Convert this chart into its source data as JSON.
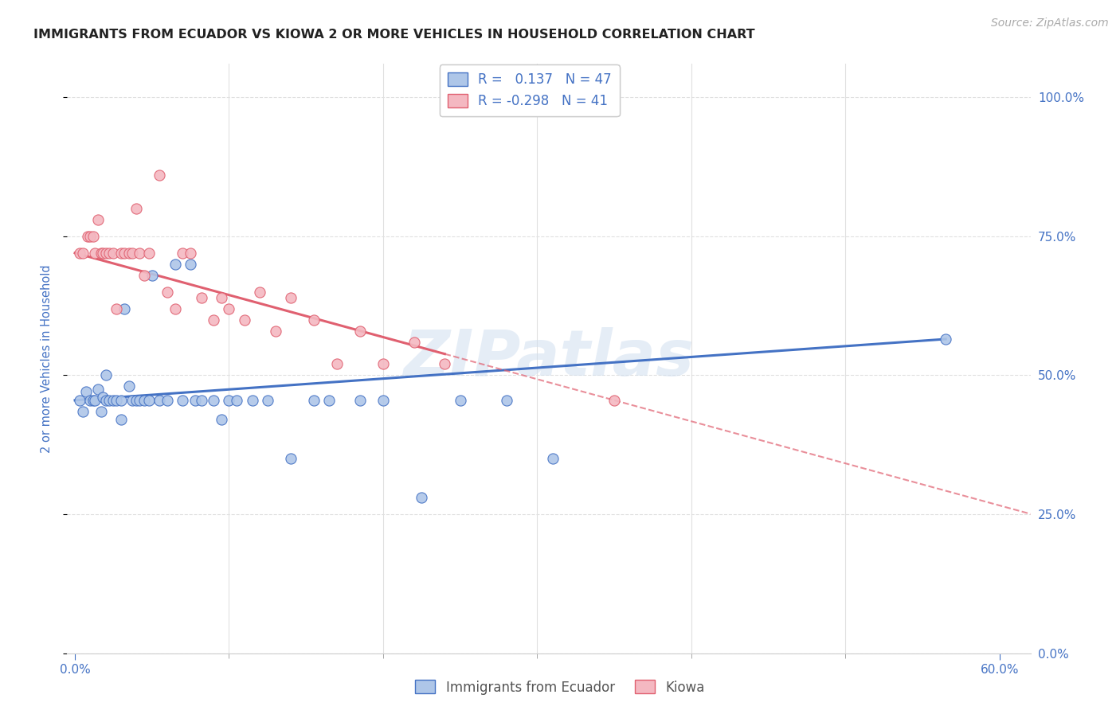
{
  "title": "IMMIGRANTS FROM ECUADOR VS KIOWA 2 OR MORE VEHICLES IN HOUSEHOLD CORRELATION CHART",
  "source": "Source: ZipAtlas.com",
  "xlabel_ticks_shown": [
    "0.0%",
    "60.0%"
  ],
  "xlabel_ticks_shown_vals": [
    0.0,
    0.6
  ],
  "xlabel_minor_vals": [
    0.1,
    0.2,
    0.3,
    0.4,
    0.5
  ],
  "ylabel_ticks": [
    "0.0%",
    "25.0%",
    "50.0%",
    "75.0%",
    "100.0%"
  ],
  "ylabel_vals": [
    0.0,
    0.25,
    0.5,
    0.75,
    1.0
  ],
  "xlim": [
    -0.005,
    0.62
  ],
  "ylim": [
    0.0,
    1.06
  ],
  "watermark": "ZIPatlas",
  "ecuador_scatter_x": [
    0.003,
    0.005,
    0.007,
    0.01,
    0.012,
    0.013,
    0.015,
    0.017,
    0.018,
    0.02,
    0.02,
    0.022,
    0.025,
    0.027,
    0.03,
    0.03,
    0.032,
    0.035,
    0.037,
    0.04,
    0.042,
    0.045,
    0.048,
    0.05,
    0.055,
    0.06,
    0.065,
    0.07,
    0.075,
    0.078,
    0.082,
    0.09,
    0.095,
    0.1,
    0.105,
    0.115,
    0.125,
    0.14,
    0.155,
    0.165,
    0.185,
    0.2,
    0.225,
    0.25,
    0.28,
    0.31,
    0.565
  ],
  "ecuador_scatter_y": [
    0.455,
    0.435,
    0.47,
    0.455,
    0.455,
    0.455,
    0.475,
    0.435,
    0.46,
    0.455,
    0.5,
    0.455,
    0.455,
    0.455,
    0.455,
    0.42,
    0.62,
    0.48,
    0.455,
    0.455,
    0.455,
    0.455,
    0.455,
    0.68,
    0.455,
    0.455,
    0.7,
    0.455,
    0.7,
    0.455,
    0.455,
    0.455,
    0.42,
    0.455,
    0.455,
    0.455,
    0.455,
    0.35,
    0.455,
    0.455,
    0.455,
    0.455,
    0.28,
    0.455,
    0.455,
    0.35,
    0.565
  ],
  "kiowa_scatter_x": [
    0.003,
    0.005,
    0.008,
    0.01,
    0.012,
    0.013,
    0.015,
    0.017,
    0.018,
    0.02,
    0.022,
    0.025,
    0.027,
    0.03,
    0.032,
    0.035,
    0.037,
    0.04,
    0.042,
    0.045,
    0.048,
    0.055,
    0.06,
    0.065,
    0.07,
    0.075,
    0.082,
    0.09,
    0.095,
    0.1,
    0.11,
    0.12,
    0.13,
    0.14,
    0.155,
    0.17,
    0.185,
    0.2,
    0.22,
    0.24,
    0.35
  ],
  "kiowa_scatter_y": [
    0.72,
    0.72,
    0.75,
    0.75,
    0.75,
    0.72,
    0.78,
    0.72,
    0.72,
    0.72,
    0.72,
    0.72,
    0.62,
    0.72,
    0.72,
    0.72,
    0.72,
    0.8,
    0.72,
    0.68,
    0.72,
    0.86,
    0.65,
    0.62,
    0.72,
    0.72,
    0.64,
    0.6,
    0.64,
    0.62,
    0.6,
    0.65,
    0.58,
    0.64,
    0.6,
    0.52,
    0.58,
    0.52,
    0.56,
    0.52,
    0.455
  ],
  "ecuador_color": "#aec6e8",
  "ecuador_line_color": "#4472c4",
  "kiowa_color": "#f4b8c1",
  "kiowa_line_color": "#e06070",
  "background_color": "#ffffff",
  "grid_color": "#e0e0e0",
  "title_color": "#222222",
  "axis_label_color": "#4472c4"
}
